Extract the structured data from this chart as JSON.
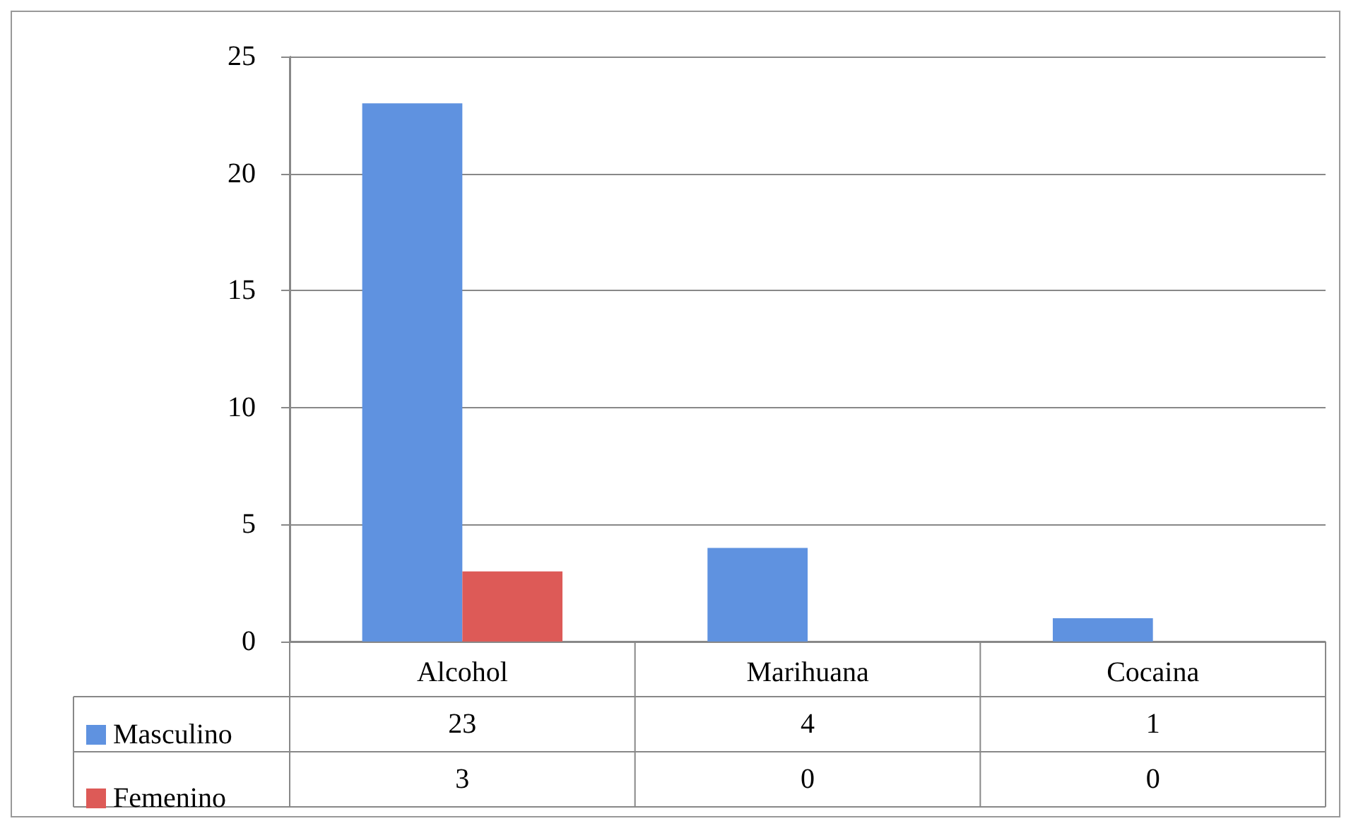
{
  "chart_data": {
    "type": "bar",
    "categories": [
      "Alcohol",
      "Marihuana",
      "Cocaina"
    ],
    "series": [
      {
        "name": "Masculino",
        "color": "#5f92e0",
        "values": [
          23,
          4,
          1
        ]
      },
      {
        "name": "Femenino",
        "color": "#dd5a57",
        "values": [
          3,
          0,
          0
        ]
      }
    ],
    "ylim": [
      0,
      25
    ],
    "yticks": [
      0,
      5,
      10,
      15,
      20,
      25
    ],
    "grid": "y",
    "legend": "bottom",
    "data_labels": true
  }
}
